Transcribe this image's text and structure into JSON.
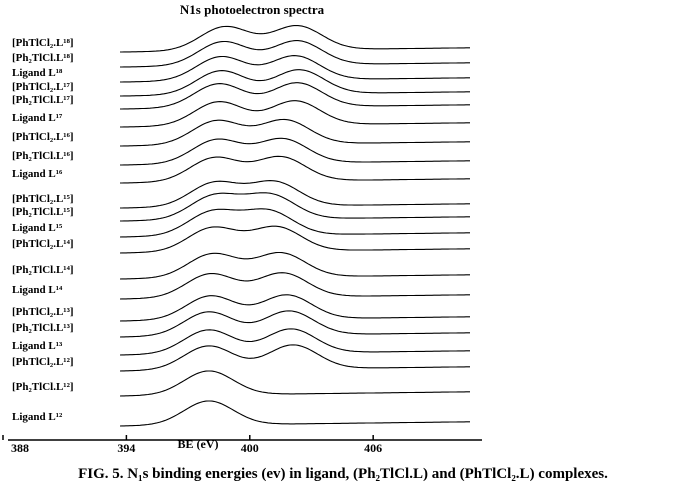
{
  "chart_data": {
    "type": "spectra",
    "title": "N1s photoelectron spectra",
    "x_label": "BE (eV)",
    "caption": "FIG. 5. N₁s binding energies (ev) in ligand, (Ph₂TlCl.L) and (PhTlCl₂.L) complexes.",
    "xlim": [
      388,
      411
    ],
    "xticks": [
      388,
      394,
      400,
      406
    ],
    "color": "#000000",
    "spectra": [
      {
        "name": "[PhTlCl₂.L¹⁸]",
        "peaks": [
          398.8,
          402.3
        ]
      },
      {
        "name": "[Ph₂TlCl.L¹⁸]",
        "peaks": [
          398.7,
          402.3
        ]
      },
      {
        "name": "Ligand L¹⁸",
        "peaks": [
          398.6,
          402.2
        ]
      },
      {
        "name": "[PhTlCl₂.L¹⁷]",
        "peaks": [
          398.6,
          402.4
        ]
      },
      {
        "name": "[Ph₂TlCl.L¹⁷]",
        "peaks": [
          398.5,
          402.3
        ]
      },
      {
        "name": "Ligand L¹⁷",
        "peaks": [
          398.5,
          402.2
        ]
      },
      {
        "name": "[PhTlCl₂.L¹⁶]",
        "peaks": [
          398.4,
          401.7
        ]
      },
      {
        "name": "[Ph₂TlCl.L¹⁶]",
        "peaks": [
          398.4,
          401.6
        ]
      },
      {
        "name": "Ligand L¹⁶",
        "peaks": [
          398.3,
          401.5
        ]
      },
      {
        "name": "[PhTlCl₂.L¹⁵]",
        "peaks": [
          398.3,
          401.2
        ]
      },
      {
        "name": "[Ph₂TlCl.L¹⁵]",
        "peaks": [
          398.3,
          401.0
        ]
      },
      {
        "name": "Ligand L¹⁵",
        "peaks": [
          398.2,
          400.9
        ]
      },
      {
        "name": "[PhTlCl₂.L¹⁴]",
        "peaks": [
          398.2,
          401.3
        ]
      },
      {
        "name": "[Ph₂TlCl.L¹⁴]",
        "peaks": [
          398.2,
          401.5
        ]
      },
      {
        "name": "Ligand L¹⁴",
        "peaks": [
          398.1,
          401.6
        ]
      },
      {
        "name": "[PhTlCl₂.L¹³]",
        "peaks": [
          398.1,
          401.8
        ]
      },
      {
        "name": "[Ph₂TlCl.L¹³]",
        "peaks": [
          398.0,
          401.9
        ]
      },
      {
        "name": "Ligand L¹³",
        "peaks": [
          398.0,
          402.0
        ]
      },
      {
        "name": "[PhTlCl₂.L¹²]",
        "peaks": [
          398.0,
          402.1
        ]
      },
      {
        "name": "[Ph₂TlCl.L¹²]",
        "peaks": [
          398.0
        ]
      },
      {
        "name": "Ligand L¹²",
        "peaks": [
          398.0
        ]
      }
    ]
  }
}
